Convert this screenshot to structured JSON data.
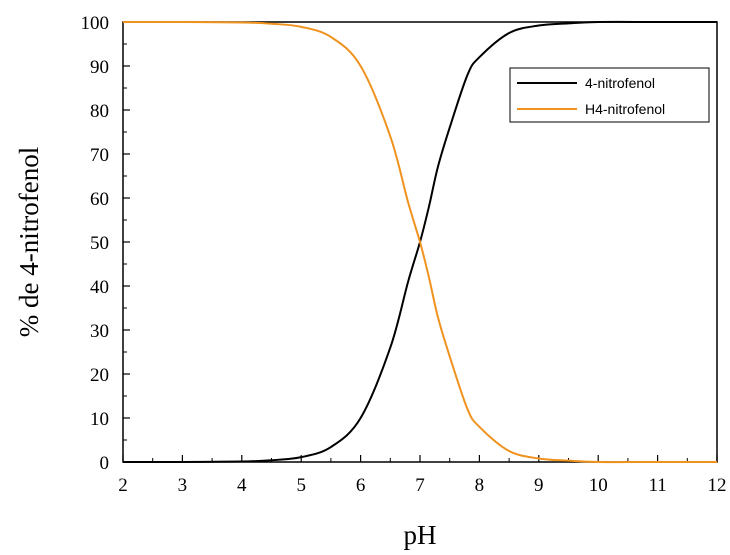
{
  "chart_data": {
    "type": "line",
    "title": "",
    "xlabel": "pH",
    "ylabel": "% de 4-nitrofenol",
    "xlim": [
      2,
      12
    ],
    "ylim": [
      0,
      100
    ],
    "xticks": [
      2,
      3,
      4,
      5,
      6,
      7,
      8,
      9,
      10,
      11,
      12
    ],
    "yticks": [
      0,
      10,
      20,
      30,
      40,
      50,
      60,
      70,
      80,
      90,
      100
    ],
    "grid": false,
    "legend_position": "top-right",
    "series": [
      {
        "name": "4-nitrofenol",
        "color": "#000000",
        "x": [
          2,
          3,
          4,
          4.5,
          5,
          5.5,
          6,
          6.5,
          6.8,
          7,
          7.15,
          7.3,
          7.5,
          7.8,
          8,
          8.5,
          9,
          9.5,
          10,
          11,
          12
        ],
        "y": [
          0,
          0,
          0.1,
          0.4,
          1.1,
          3.4,
          10,
          26,
          41,
          50,
          58,
          67,
          76,
          88,
          92,
          97.5,
          99.2,
          99.7,
          100,
          100,
          100
        ]
      },
      {
        "name": "H4-nitrofenol",
        "color": "#f0921e",
        "x": [
          2,
          3,
          4,
          4.5,
          5,
          5.5,
          6,
          6.5,
          6.8,
          7,
          7.15,
          7.3,
          7.5,
          7.8,
          8,
          8.5,
          9,
          9.5,
          10,
          11,
          12
        ],
        "y": [
          100,
          100,
          99.9,
          99.6,
          98.9,
          96.6,
          90,
          74,
          59,
          50,
          42,
          33,
          24,
          12,
          8,
          2.5,
          0.8,
          0.3,
          0,
          0,
          0
        ]
      }
    ]
  }
}
